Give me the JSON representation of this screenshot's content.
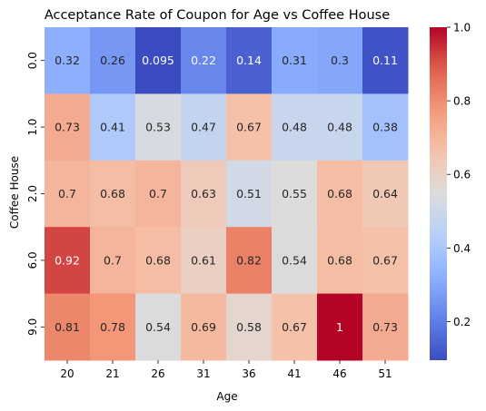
{
  "chart_data": {
    "type": "heatmap",
    "title": "Acceptance Rate of Coupon for Age vs Coffee House",
    "xlabel": "Age",
    "ylabel": "Coffee House",
    "x_categories": [
      "20",
      "21",
      "26",
      "31",
      "36",
      "41",
      "46",
      "51"
    ],
    "y_categories": [
      "0.0",
      "1.0",
      "2.0",
      "6.0",
      "9.0"
    ],
    "values": [
      [
        0.32,
        0.26,
        0.095,
        0.22,
        0.14,
        0.31,
        0.3,
        0.11
      ],
      [
        0.73,
        0.41,
        0.53,
        0.47,
        0.67,
        0.48,
        0.48,
        0.38
      ],
      [
        0.7,
        0.68,
        0.7,
        0.63,
        0.51,
        0.55,
        0.68,
        0.64
      ],
      [
        0.92,
        0.7,
        0.68,
        0.61,
        0.82,
        0.54,
        0.68,
        0.67
      ],
      [
        0.81,
        0.78,
        0.54,
        0.69,
        0.58,
        0.67,
        1,
        0.73
      ]
    ],
    "cell_labels": [
      [
        "0.32",
        "0.26",
        "0.095",
        "0.22",
        "0.14",
        "0.31",
        "0.3",
        "0.11"
      ],
      [
        "0.73",
        "0.41",
        "0.53",
        "0.47",
        "0.67",
        "0.48",
        "0.48",
        "0.38"
      ],
      [
        "0.7",
        "0.68",
        "0.7",
        "0.63",
        "0.51",
        "0.55",
        "0.68",
        "0.64"
      ],
      [
        "0.92",
        "0.7",
        "0.68",
        "0.61",
        "0.82",
        "0.54",
        "0.68",
        "0.67"
      ],
      [
        "0.81",
        "0.78",
        "0.54",
        "0.69",
        "0.58",
        "0.67",
        "1",
        "0.73"
      ]
    ],
    "colormap": "coolwarm",
    "vmin": 0.095,
    "vmax": 1.0,
    "colorbar_ticks": [
      "0.2",
      "0.4",
      "0.6",
      "0.8",
      "1.0"
    ],
    "legend_placement": "right colorbar"
  }
}
